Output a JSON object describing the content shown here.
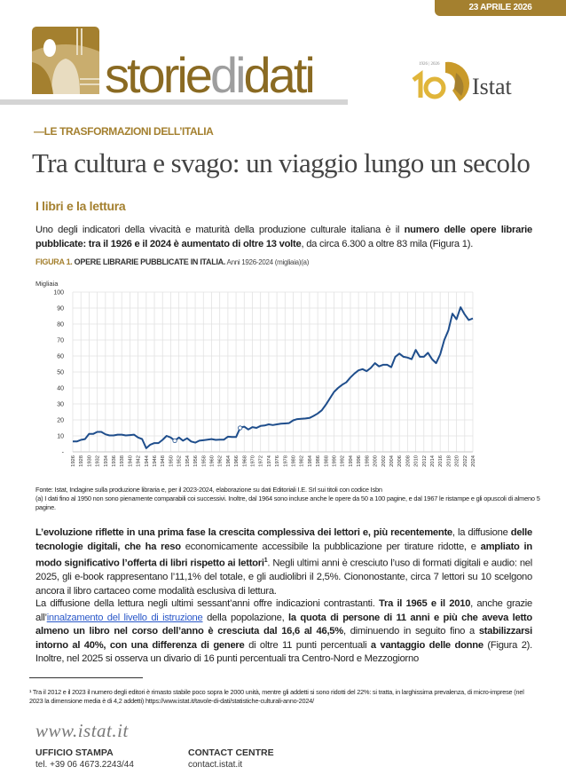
{
  "header": {
    "date": "23 APRILE 2026",
    "brand": {
      "part1": "storie",
      "part2": "di",
      "part3": "dati"
    },
    "istat_logo": {
      "years": "1926 | 2026",
      "name": "Istat"
    },
    "kicker": "—LE TRASFORMAZIONI DELL’ITALIA",
    "title": "Tra cultura e svago: un viaggio lungo un secolo"
  },
  "colors": {
    "gold": "#a4802f",
    "line": "#1f4e8c",
    "link": "#2a58c9"
  },
  "main": {
    "section": "I libri e la lettura",
    "para0": [
      {
        "t": "Uno degli indicatori della vivacità e maturità della produzione culturale italiana è il ",
        "b": false
      },
      {
        "t": "numero delle opere librarie pubblicate: tra il 1926 e il 2024 è aumentato di oltre 13 volte",
        "b": true
      },
      {
        "t": ", da circa 6.300 a oltre 83 mila (Figura 1).",
        "b": false
      }
    ],
    "para1": [
      {
        "t": "L’evoluzione riflette in una prima fase la crescita complessiva dei lettori e, più recentemente",
        "b": true
      },
      {
        "t": ", la diffusione ",
        "b": false
      },
      {
        "t": "delle tecnologie digitali, che ha reso",
        "b": true
      },
      {
        "t": " economicamente accessibile la pubblicazione per tirature ridotte, e ",
        "b": false
      },
      {
        "t": "ampliato in modo significativo l’offerta di libri rispetto ai lettori",
        "b": true
      },
      {
        "t": "1",
        "b": true,
        "sup": true
      },
      {
        "t": ". Negli ultimi anni è cresciuto l’uso di formati digitali e audio: nel 2025, gli e-book rappresentano l’11,1% del totale, e gli audiolibri il 2,5%. Ciononostante, circa 7 lettori su 10 scelgono ancora il libro cartaceo come modalità esclusiva di lettura.",
        "b": false
      }
    ],
    "para2": [
      {
        "t": "La diffusione della lettura negli ultimi sessant’anni offre indicazioni contrastanti. ",
        "b": false
      },
      {
        "t": "Tra il 1965 e il 2010",
        "b": true
      },
      {
        "t": ", anche grazie all’",
        "b": false
      },
      {
        "t": "innalzamento del livello di istruzione",
        "b": false,
        "link": true
      },
      {
        "t": " della popolazione, ",
        "b": false
      },
      {
        "t": "la quota di persone di 11 anni e più che aveva letto almeno un libro nel corso dell’anno è cresciuta dal 16,6 al 46,5%",
        "b": true
      },
      {
        "t": ", diminuendo in seguito fino a ",
        "b": false
      },
      {
        "t": "stabilizzarsi intorno al 40%, con una differenza di genere",
        "b": true
      },
      {
        "t": " di oltre 11 punti percentuali ",
        "b": false
      },
      {
        "t": "a vantaggio delle donne",
        "b": true
      },
      {
        "t": " (Figura 2). Inoltre, nel 2025 si osserva un divario di 16 punti percentuali tra Centro-Nord e Mezzogiorno",
        "b": false
      }
    ],
    "figure": {
      "label": "FIGURA 1. ",
      "title": "OPERE LIBRARIE PUBBLICATE IN ITALIA.",
      "subtitle": " Anni 1926-2024 (migliaia)(a)",
      "source": "Fonte: Istat, Indagine sulla produzione libraria e, per il 2023-2024, elaborazione su dati Editoriali I.E. Srl sui titoli con codice Isbn",
      "note": "(a) I dati fino al 1950 non sono pienamente comparabili coi successivi. Inoltre, dal 1964 sono incluse anche le opere da 50 a 100 pagine, e dal 1967 le ristampe e gli opuscoli di almeno 5 pagine."
    }
  },
  "chart_data": {
    "type": "line",
    "title": "OPERE LIBRARIE PUBBLICATE IN ITALIA. Anni 1926-2024 (migliaia)(a)",
    "ylabel": "Migliaia",
    "ylim": [
      0,
      100
    ],
    "yticks": [
      "-",
      "10",
      "20",
      "30",
      "40",
      "50",
      "60",
      "70",
      "80",
      "90",
      "100"
    ],
    "grid": true,
    "x_start": 1926,
    "x_end": 2024,
    "x_tick_step": 2,
    "hollow_markers": [
      1951,
      1967
    ],
    "values": [
      6.5,
      6.5,
      7.5,
      8,
      11.3,
      11.2,
      12.5,
      12.5,
      11,
      10.3,
      10.3,
      10.8,
      10.8,
      10.3,
      10.5,
      10.8,
      9,
      8,
      2.3,
      4.5,
      5.5,
      5.5,
      7.5,
      10,
      9,
      7,
      9,
      7,
      8.5,
      6.5,
      5.8,
      7,
      7.3,
      7.6,
      8,
      7.5,
      7.6,
      7.6,
      9.5,
      9.3,
      9.3,
      15,
      15.8,
      14,
      15.5,
      15,
      16.2,
      16.5,
      17.2,
      16.8,
      17.2,
      17.6,
      17.8,
      18,
      19.7,
      20.5,
      20.7,
      20.9,
      21.2,
      22.5,
      24,
      26,
      29.5,
      33.5,
      37.5,
      40,
      42,
      43.5,
      46.5,
      49,
      51,
      51.8,
      50.5,
      52.5,
      55.5,
      53.5,
      54.5,
      54.5,
      53,
      59.5,
      61.5,
      59.5,
      59,
      58,
      63.8,
      59.5,
      59.5,
      62,
      58,
      55.5,
      61,
      70,
      76,
      86.5,
      83,
      90.5,
      86,
      82.5,
      83.5
    ]
  },
  "footnote": {
    "text": "¹ Tra il 2012 e il 2023 il numero degli editori è rimasto stabile poco sopra le 2000 unità, mentre gli addetti si sono ridotti del 22%: si tratta, in larghissima prevalenza, di micro-imprese (nel 2023 la dimensione media è di 4,2 addetti) https://www.istat.it/tavole-di-dati/statistiche-culturali-anno-2024/"
  },
  "footer": {
    "website": "www.istat.it",
    "press_office": {
      "label": "UFFICIO STAMPA",
      "phone": "tel. +39 06 4673.2243/44"
    },
    "contact_centre": {
      "label": "CONTACT CENTRE",
      "value": "contact.istat.it"
    }
  }
}
